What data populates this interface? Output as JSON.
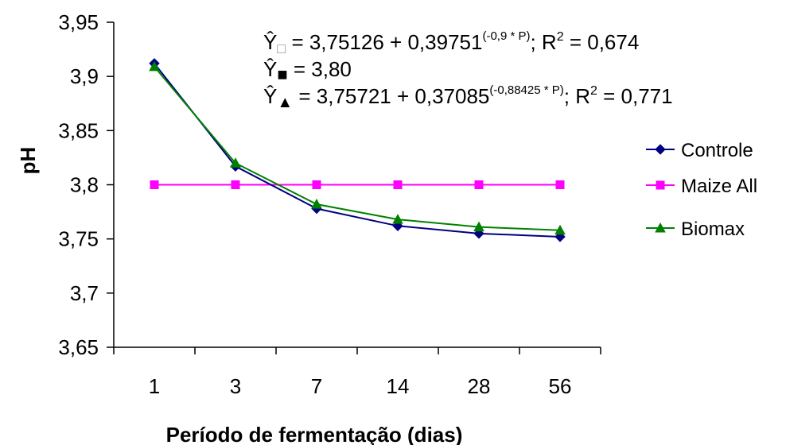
{
  "chart_data": {
    "type": "line",
    "xlabel": "Período de fermentação (dias)",
    "ylabel": "pH",
    "categories": [
      "1",
      "3",
      "7",
      "14",
      "28",
      "56"
    ],
    "ylim": [
      3.65,
      3.95
    ],
    "yticks": [
      "3,65",
      "3,7",
      "3,75",
      "3,8",
      "3,85",
      "3,9",
      "3,95"
    ],
    "series": [
      {
        "name": "Controle",
        "color": "#000080",
        "marker": "diamond",
        "values": [
          3.912,
          3.817,
          3.778,
          3.762,
          3.755,
          3.752
        ]
      },
      {
        "name": "Maize All",
        "color": "#FF00FF",
        "marker": "square",
        "values": [
          3.8,
          3.8,
          3.8,
          3.8,
          3.8,
          3.8
        ]
      },
      {
        "name": "Biomax",
        "color": "#008000",
        "marker": "triangle",
        "values": [
          3.909,
          3.82,
          3.782,
          3.768,
          3.761,
          3.758
        ]
      }
    ],
    "equations": [
      {
        "prefix": "Ŷ",
        "symbol": "□",
        "body": " = 3,75126 + 0,39751",
        "exponent": "(-0,9 * P)",
        "tail": "; R",
        "r2_sup": "2",
        "r2_value": " = 0,674"
      },
      {
        "prefix": "Ŷ",
        "symbol": "■",
        "body": " = 3,80",
        "exponent": "",
        "tail": "",
        "r2_sup": "",
        "r2_value": ""
      },
      {
        "prefix": "Ŷ",
        "symbol": "▲",
        "body": " = 3,75721 + 0,37085",
        "exponent": "(-0,88425 * P)",
        "tail": "; R",
        "r2_sup": "2",
        "r2_value": " = 0,771"
      }
    ],
    "legend_position": "right",
    "grid": false
  }
}
